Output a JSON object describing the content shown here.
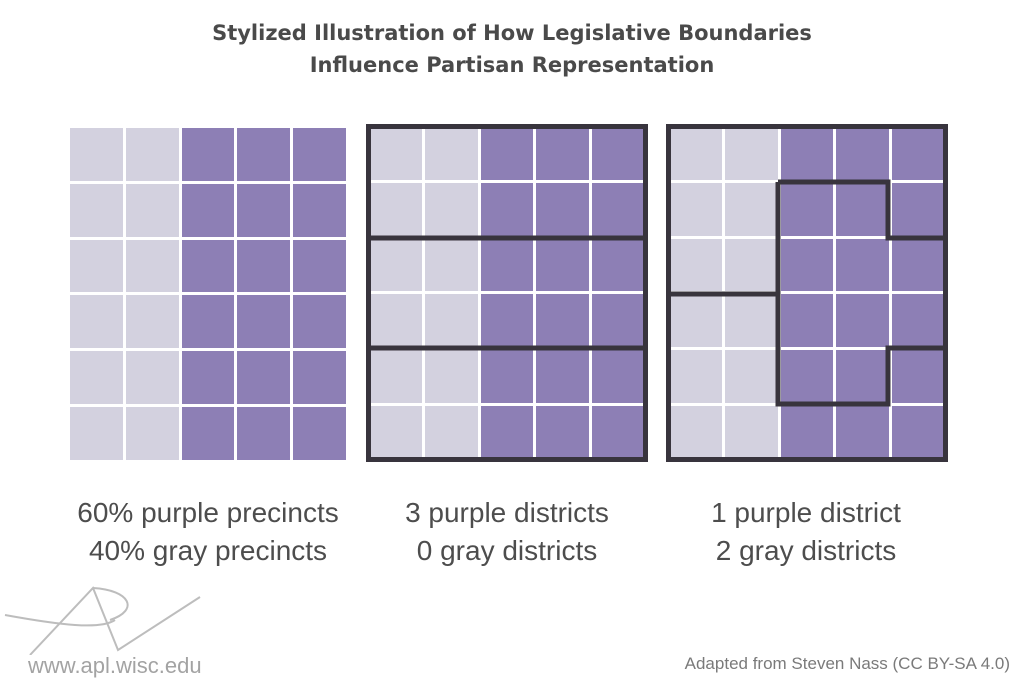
{
  "title": {
    "line1": "Stylized Illustration of How Legislative Boundaries",
    "line2": "Influence Partisan Representation"
  },
  "colors": {
    "purple": "#8d7fb5",
    "gray": "#d3d1df",
    "boundary": "#38343d",
    "text": "#4d4d4d"
  },
  "grid": {
    "rows": 6,
    "cols": 5,
    "pattern": [
      "g",
      "g",
      "p",
      "p",
      "p"
    ]
  },
  "panels": [
    {
      "id": "precincts",
      "caption_line1": "60% purple precincts",
      "caption_line2": "40% gray precincts"
    },
    {
      "id": "horizontal-districts",
      "caption_line1": "3 purple districts",
      "caption_line2": "0 gray districts"
    },
    {
      "id": "gerrymandered-districts",
      "caption_line1": "1 purple district",
      "caption_line2": "2 gray districts"
    }
  ],
  "footer": {
    "url": "www.apl.wisc.edu",
    "credit": "Adapted from Steven Nass (CC BY-SA 4.0)"
  }
}
